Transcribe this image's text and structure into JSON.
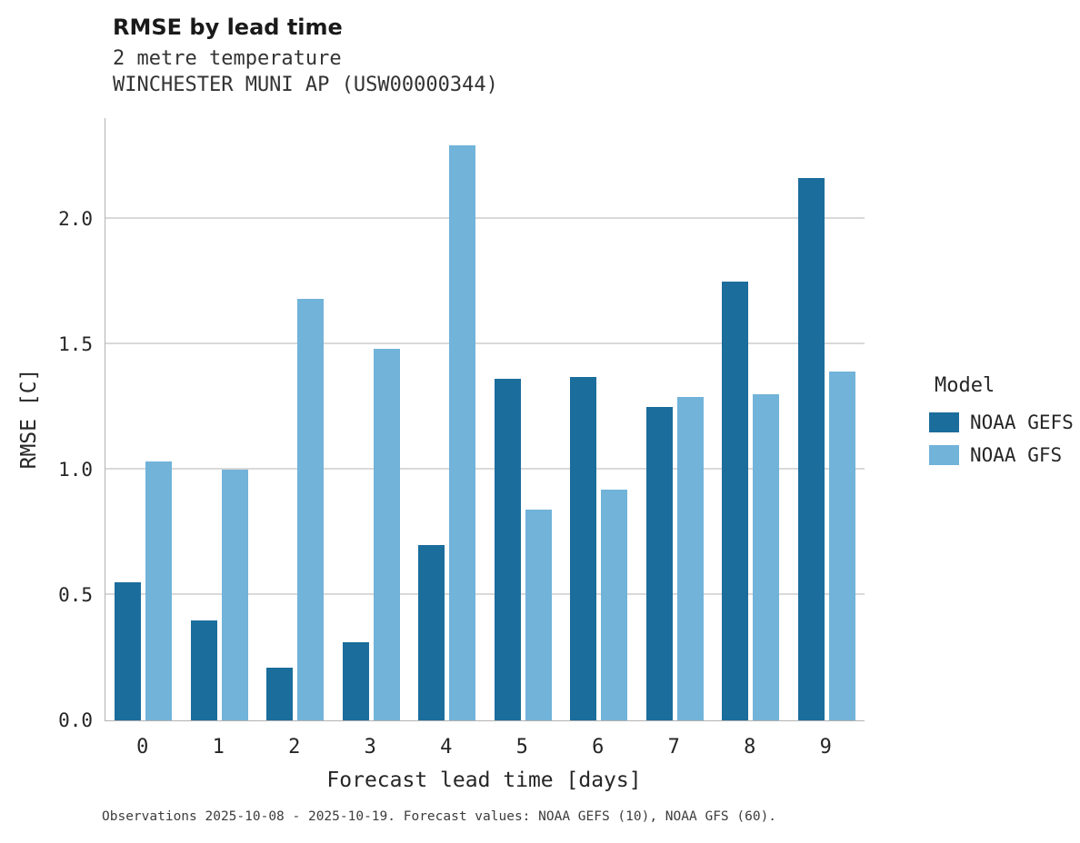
{
  "chart_data": {
    "type": "bar",
    "title": "RMSE by lead time",
    "subtitle_line1": "2 metre temperature",
    "subtitle_line2": "WINCHESTER MUNI AP (USW00000344)",
    "xlabel": "Forecast lead time [days]",
    "ylabel": "RMSE [C]",
    "categories": [
      "0",
      "1",
      "2",
      "3",
      "4",
      "5",
      "6",
      "7",
      "8",
      "9"
    ],
    "series": [
      {
        "name": "NOAA GEFS",
        "color": "#1b6d9c",
        "values": [
          0.55,
          0.4,
          0.21,
          0.31,
          0.7,
          1.36,
          1.37,
          1.25,
          1.75,
          2.16
        ]
      },
      {
        "name": "NOAA GFS",
        "color": "#71b3d9",
        "values": [
          1.03,
          1.0,
          1.68,
          1.48,
          2.29,
          0.84,
          0.92,
          1.29,
          1.3,
          1.39
        ]
      }
    ],
    "ylim": [
      0,
      2.4
    ],
    "yticks": [
      0.0,
      0.5,
      1.0,
      1.5,
      2.0
    ],
    "grid": "horizontal",
    "grid_color": "#d9d9d9",
    "axis_color": "#b3b3b3",
    "legend_title": "Model",
    "legend_position": "right",
    "caption": "Observations 2025-10-08 - 2025-10-19. Forecast values: NOAA GEFS (10), NOAA GFS (60)."
  }
}
